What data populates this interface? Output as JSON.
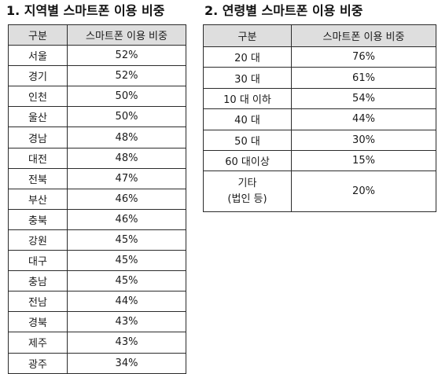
{
  "region_section": {
    "title": "1. 지역별 스마트폰 이용 비중",
    "headers": [
      "구분",
      "스마트폰 이용 비중"
    ],
    "rows": [
      {
        "label": "서울",
        "value": "52%"
      },
      {
        "label": "경기",
        "value": "52%"
      },
      {
        "label": "인천",
        "value": "50%"
      },
      {
        "label": "울산",
        "value": "50%"
      },
      {
        "label": "경남",
        "value": "48%"
      },
      {
        "label": "대전",
        "value": "48%"
      },
      {
        "label": "전북",
        "value": "47%"
      },
      {
        "label": "부산",
        "value": "46%"
      },
      {
        "label": "충북",
        "value": "46%"
      },
      {
        "label": "강원",
        "value": "45%"
      },
      {
        "label": "대구",
        "value": "45%"
      },
      {
        "label": "충남",
        "value": "45%"
      },
      {
        "label": "전남",
        "value": "44%"
      },
      {
        "label": "경북",
        "value": "43%"
      },
      {
        "label": "제주",
        "value": "43%"
      },
      {
        "label": "광주",
        "value": "34%"
      }
    ]
  },
  "age_section": {
    "title": "2. 연령별 스마트폰 이용 비중",
    "headers": [
      "구분",
      "스마트폰 이용 비중"
    ],
    "rows": [
      {
        "label": "20 대",
        "value": "76%"
      },
      {
        "label": "30 대",
        "value": "61%"
      },
      {
        "label": "10 대 이하",
        "value": "54%"
      },
      {
        "label": "40 대",
        "value": "44%"
      },
      {
        "label": "50 대",
        "value": "30%"
      },
      {
        "label": "60 대이상",
        "value": "15%"
      }
    ],
    "other_row": {
      "label_line1": "기타",
      "label_line2": "(법인 등)",
      "value": "20%"
    }
  }
}
